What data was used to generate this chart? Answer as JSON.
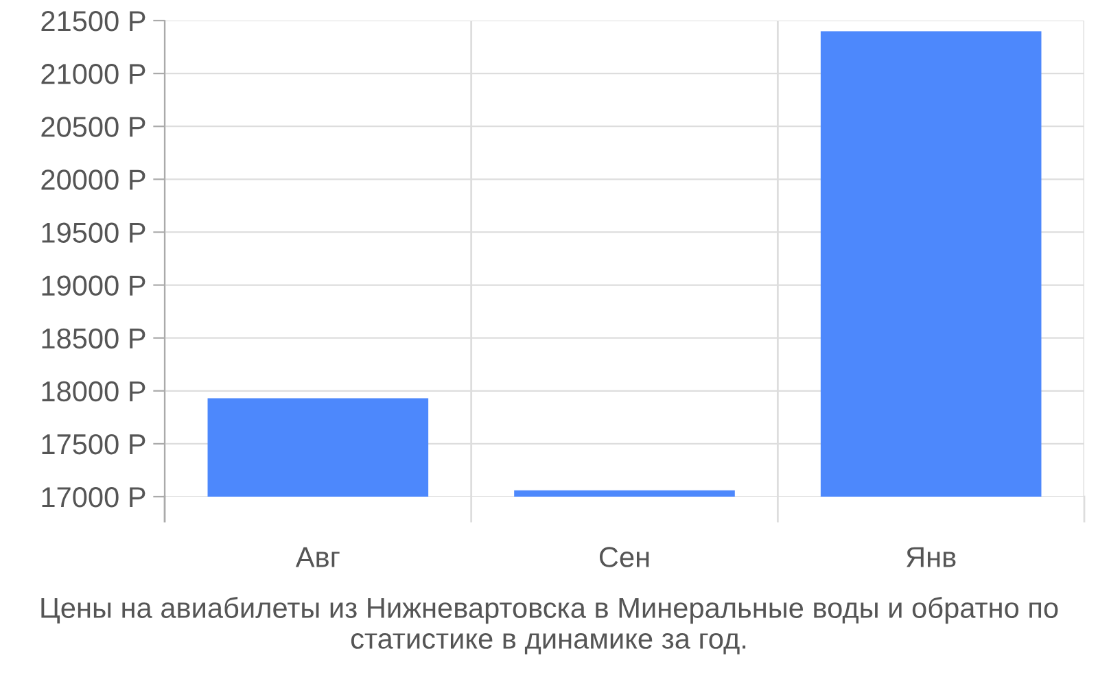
{
  "chart_data": {
    "type": "bar",
    "categories": [
      "Авг",
      "Сен",
      "Янв"
    ],
    "values": [
      17930,
      17060,
      21400
    ],
    "color": "#4d88fc",
    "ylim": [
      17000,
      21500
    ],
    "yticks": [
      {
        "value": 17000,
        "label": "17000 Р"
      },
      {
        "value": 17500,
        "label": "17500 Р"
      },
      {
        "value": 18000,
        "label": "18000 Р"
      },
      {
        "value": 18500,
        "label": "18500 Р"
      },
      {
        "value": 19000,
        "label": "19000 Р"
      },
      {
        "value": 19500,
        "label": "19500 Р"
      },
      {
        "value": 20000,
        "label": "20000 Р"
      },
      {
        "value": 20500,
        "label": "20500 Р"
      },
      {
        "value": 21000,
        "label": "21000 Р"
      },
      {
        "value": 21500,
        "label": "21500 Р"
      }
    ],
    "grid": true,
    "annotations": [
      "Цены на авиабилеты из Нижневартовска в Минеральные воды и обратно по статистике в динамике за год."
    ]
  }
}
